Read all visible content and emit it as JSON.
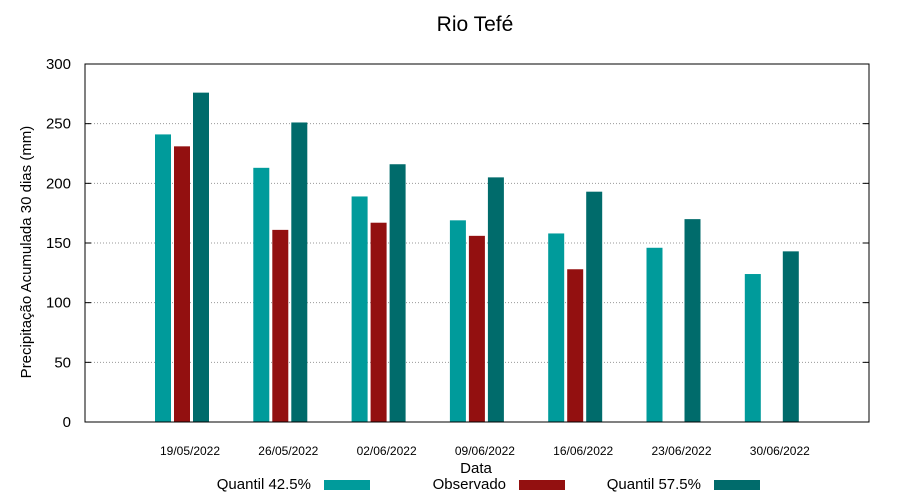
{
  "chart_data": {
    "type": "bar",
    "title": "Rio Tefé",
    "xlabel": "Data",
    "ylabel": "Precipitação Acumulada 30 dias (mm)",
    "ylim": [
      0,
      300
    ],
    "yticks": [
      0,
      50,
      100,
      150,
      200,
      250,
      300
    ],
    "grid": true,
    "legend_position": "bottom",
    "categories": [
      "19/05/2022",
      "26/05/2022",
      "02/06/2022",
      "09/06/2022",
      "16/06/2022",
      "23/06/2022",
      "30/06/2022"
    ],
    "series": [
      {
        "name": "Quantil 42.5%",
        "color": "#009b9b",
        "values": [
          241,
          213,
          189,
          169,
          158,
          146,
          124
        ]
      },
      {
        "name": "Observado",
        "color": "#931010",
        "values": [
          231,
          161,
          167,
          156,
          128,
          null,
          null
        ]
      },
      {
        "name": "Quantil 57.5%",
        "color": "#006b6b",
        "values": [
          276,
          251,
          216,
          205,
          193,
          170,
          143
        ]
      }
    ]
  }
}
